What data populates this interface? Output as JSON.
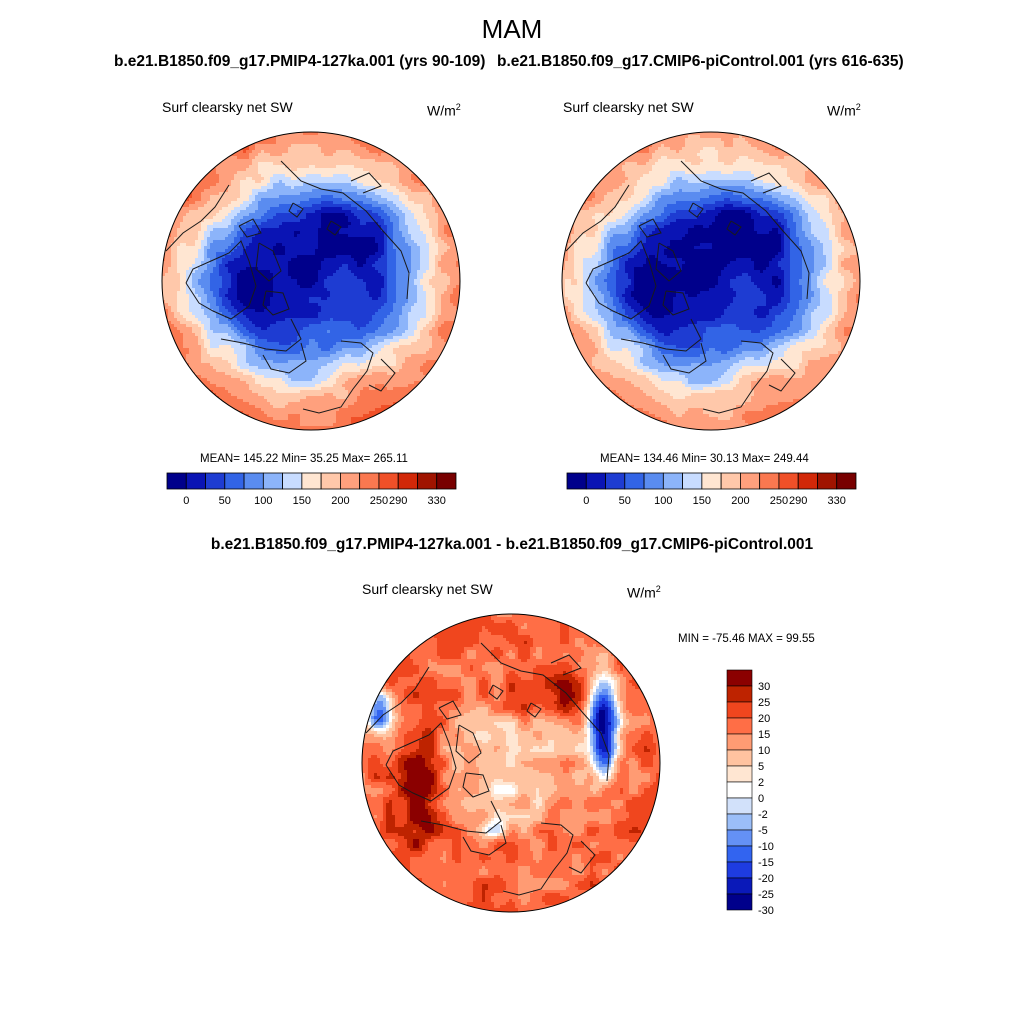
{
  "page": {
    "season": "MAM",
    "diff_title": "b.e21.B1850.f09_g17.PMIP4-127ka.001 - b.e21.B1850.f09_g17.CMIP6-piControl.001"
  },
  "colors": {
    "sequential": [
      "#00008b",
      "#0a14b4",
      "#1e3cd2",
      "#3264e6",
      "#5a8cf0",
      "#8cb4fa",
      "#c8dcff",
      "#ffe6d2",
      "#ffc8aa",
      "#ffa07d",
      "#fa7850",
      "#f05028",
      "#d22808",
      "#a01400",
      "#780000"
    ],
    "diverging": [
      "#00008b",
      "#0a19b9",
      "#1e3ce1",
      "#3264f0",
      "#6491f5",
      "#9bbef8",
      "#d2e1fa",
      "#ffffff",
      "#ffe6d2",
      "#ffc3a0",
      "#ff9b73",
      "#ff6e46",
      "#f0461e",
      "#be2300",
      "#8b0000"
    ],
    "coast": "#1a1a1a"
  },
  "chart_data": [
    {
      "type": "heatmap",
      "projection": "north polar stereographic",
      "title": "b.e21.B1850.f09_g17.PMIP4-127ka.001 (yrs 90-109)",
      "variable": "Surf clearsky net SW",
      "units_base": "W/m",
      "units_exp": "2",
      "stats_text": "MEAN= 145.22  Min=  35.25  Max= 265.11",
      "mean": 145.22,
      "min": 35.25,
      "max": 265.11,
      "colorbar_levels": [
        0,
        25,
        50,
        75,
        100,
        125,
        150,
        175,
        200,
        225,
        250,
        270,
        290,
        310,
        330
      ],
      "colorbar_labels": [
        "0",
        "50",
        "100",
        "150",
        "200",
        "250",
        "290",
        "330"
      ],
      "field": {
        "pole": 30,
        "inner_ring": 75,
        "mid_ring": 190,
        "outer_edge": 260
      }
    },
    {
      "type": "heatmap",
      "projection": "north polar stereographic",
      "title": "b.e21.B1850.f09_g17.CMIP6-piControl.001 (yrs 616-635)",
      "variable": "Surf clearsky net SW",
      "units_base": "W/m",
      "units_exp": "2",
      "stats_text": "MEAN= 134.46  Min=  30.13  Max= 249.44",
      "mean": 134.46,
      "min": 30.13,
      "max": 249.44,
      "colorbar_levels": [
        0,
        25,
        50,
        75,
        100,
        125,
        150,
        175,
        200,
        225,
        250,
        270,
        290,
        310,
        330
      ],
      "colorbar_labels": [
        "0",
        "50",
        "100",
        "150",
        "200",
        "250",
        "290",
        "330"
      ],
      "field": {
        "pole": 25,
        "inner_ring": 65,
        "mid_ring": 180,
        "outer_edge": 245
      }
    },
    {
      "type": "heatmap",
      "projection": "north polar stereographic",
      "title": "b.e21.B1850.f09_g17.PMIP4-127ka.001 - b.e21.B1850.f09_g17.CMIP6-piControl.001",
      "variable": "Surf clearsky net SW",
      "units_base": "W/m",
      "units_exp": "2",
      "stats_text": "MIN = -75.46 MAX =  99.55",
      "min": -75.46,
      "max": 99.55,
      "colorbar_levels": [
        -30,
        -25,
        -20,
        -15,
        -10,
        -5,
        -2,
        0,
        2,
        5,
        10,
        15,
        20,
        25,
        30
      ],
      "colorbar_labels": [
        "30",
        "25",
        "20",
        "15",
        "10",
        "5",
        "2",
        "0",
        "-2",
        "-5",
        "-10",
        "-15",
        "-20",
        "-25",
        "-30"
      ]
    }
  ]
}
